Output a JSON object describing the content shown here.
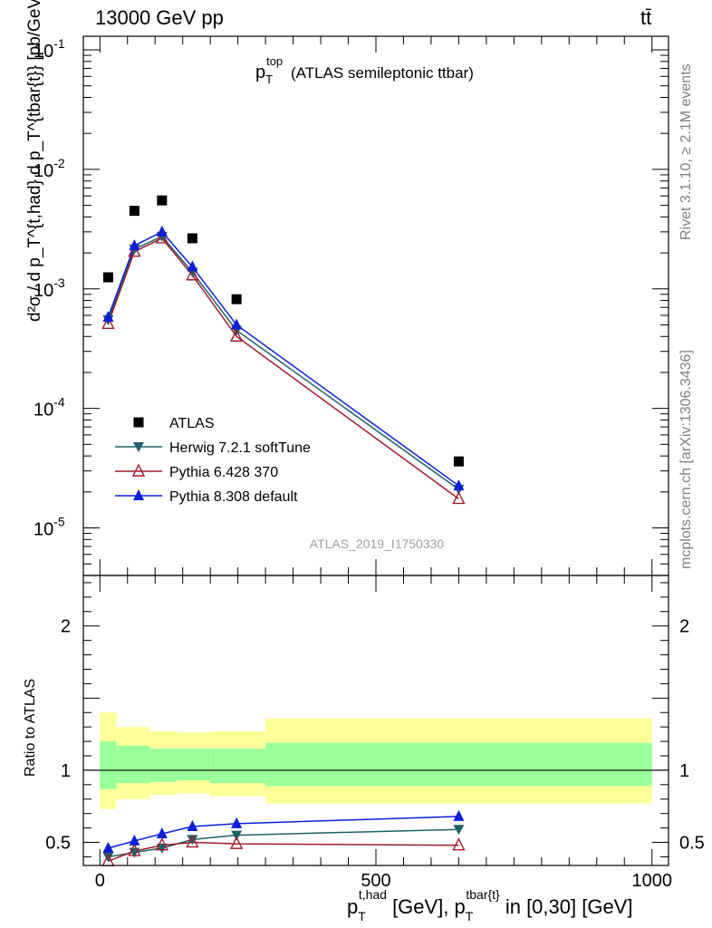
{
  "header": {
    "left": "13000 GeV pp",
    "right": "tt̄"
  },
  "side_labels": {
    "rivet": "Rivet 3.1.10, ≥ 2.1M events",
    "mcplots": "mcplots.cern.ch [arXiv:1306.3436]"
  },
  "plot_title": {
    "main": "p",
    "sup": "top",
    "sub": "T",
    "rest": "(ATLAS semileptonic ttbar)"
  },
  "analysis_id": "ATLAS_2019_I1750330",
  "y_label": {
    "main": "d²σ / d p_T^{t,had} d p_T^{tbar{t}} [pb/GeV²]"
  },
  "ratio_label": "Ratio to ATLAS",
  "x_label": {
    "p1": "p",
    "p1_sup": "t,had",
    "p1_sub": "T",
    "mid": " [GeV],  p",
    "p2_sup": "tbar{t}",
    "p2_sub": "T",
    "end": " in [0,30] [GeV]"
  },
  "ticks": {
    "main_y": [
      "10",
      "10",
      "10",
      "10",
      "10"
    ],
    "main_y_exp": [
      "-1",
      "-2",
      "-3",
      "-4",
      "-5"
    ],
    "ratio_y": [
      "2",
      "1",
      "0.5"
    ],
    "x": [
      "0",
      "500",
      "1000"
    ]
  },
  "colors": {
    "atlas": "#000000",
    "herwig": "#1f6168",
    "pythia6": "#a01c2e",
    "pythia8": "#0b1fd8",
    "band_outer": "#ffff9a",
    "band_inner": "#99ff99"
  },
  "chart_data": [
    {
      "type": "line",
      "panel": "main",
      "y_scale": "log",
      "xlim": [
        -30,
        1030
      ],
      "ylim": [
        4e-06,
        0.13
      ],
      "legend_position": "middle-left",
      "x": [
        15,
        62.5,
        112.5,
        167.5,
        247.5,
        650
      ],
      "series": [
        {
          "name": "ATLAS",
          "marker": "square",
          "values": [
            0.00125,
            0.0045,
            0.0055,
            0.00265,
            0.00082,
            3.6e-05
          ]
        },
        {
          "name": "Herwig 7.2.1 softTune",
          "marker": "triangle-down",
          "values": [
            0.00055,
            0.00215,
            0.00275,
            0.00138,
            0.00045,
            2.1e-05
          ]
        },
        {
          "name": "Pythia 6.428 370",
          "marker": "triangle-open",
          "values": [
            0.00051,
            0.00205,
            0.00265,
            0.0013,
            0.0004,
            1.75e-05
          ]
        },
        {
          "name": "Pythia 8.308 default",
          "marker": "triangle-up",
          "values": [
            0.00058,
            0.0023,
            0.003,
            0.00153,
            0.0005,
            2.25e-05
          ]
        }
      ]
    },
    {
      "type": "line",
      "panel": "ratio",
      "xlim": [
        -30,
        1030
      ],
      "ylim": [
        0.34,
        2.35
      ],
      "x": [
        15,
        62.5,
        112.5,
        167.5,
        247.5,
        650
      ],
      "reference_line": 1,
      "uncertainty_bands": {
        "edges": [
          0,
          30,
          90,
          140,
          200,
          300,
          1000
        ],
        "outer_low": [
          0.73,
          0.8,
          0.83,
          0.84,
          0.82,
          0.77
        ],
        "outer_high": [
          1.4,
          1.3,
          1.27,
          1.26,
          1.27,
          1.36
        ],
        "inner_low": [
          0.87,
          0.91,
          0.92,
          0.93,
          0.91,
          0.89
        ],
        "inner_high": [
          1.2,
          1.17,
          1.15,
          1.15,
          1.15,
          1.19
        ]
      },
      "series": [
        {
          "name": "Herwig 7.2.1 softTune",
          "values": [
            0.4,
            0.43,
            0.46,
            0.52,
            0.55,
            0.59
          ]
        },
        {
          "name": "Pythia 6.428 370",
          "values": [
            0.37,
            0.44,
            0.48,
            0.5,
            0.49,
            0.48
          ]
        },
        {
          "name": "Pythia 8.308 default",
          "values": [
            0.46,
            0.51,
            0.56,
            0.61,
            0.63,
            0.68
          ]
        }
      ]
    }
  ]
}
